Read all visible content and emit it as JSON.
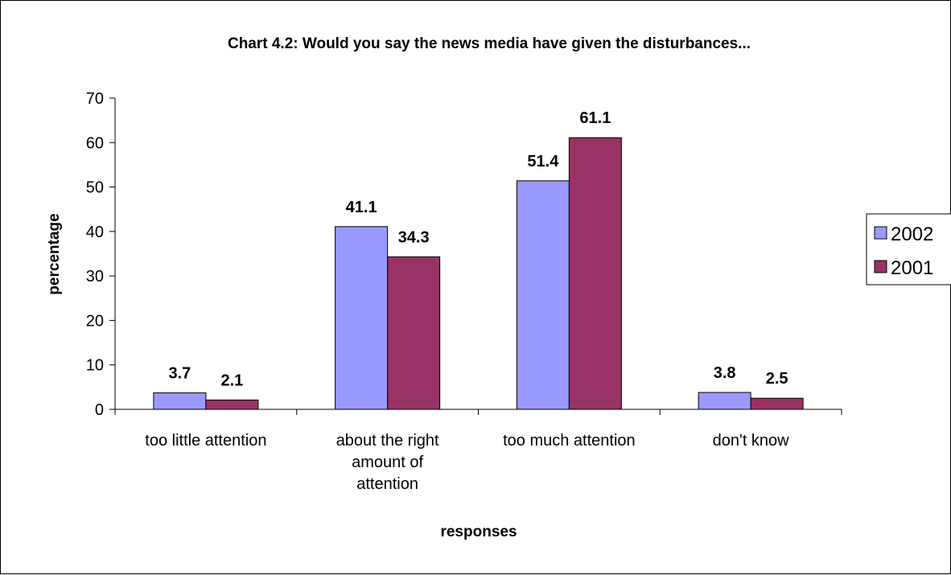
{
  "chart_data": {
    "type": "bar",
    "title": "Chart 4.2: Would you say the news media have given the disturbances...",
    "xlabel": "responses",
    "ylabel": "percentage",
    "categories": [
      [
        "too little attention"
      ],
      [
        "about the right",
        "amount of",
        "attention"
      ],
      [
        "too much attention"
      ],
      [
        "don't know"
      ]
    ],
    "series": [
      {
        "name": "2002",
        "color": "#9999ff",
        "values": [
          3.7,
          41.1,
          51.4,
          3.8
        ]
      },
      {
        "name": "2001",
        "color": "#993366",
        "values": [
          2.1,
          34.3,
          61.1,
          2.5
        ]
      }
    ],
    "ylim": [
      0,
      70
    ],
    "yticks": [
      0,
      10,
      20,
      30,
      40,
      50,
      60,
      70
    ],
    "grid": false,
    "legend_position": "right"
  }
}
